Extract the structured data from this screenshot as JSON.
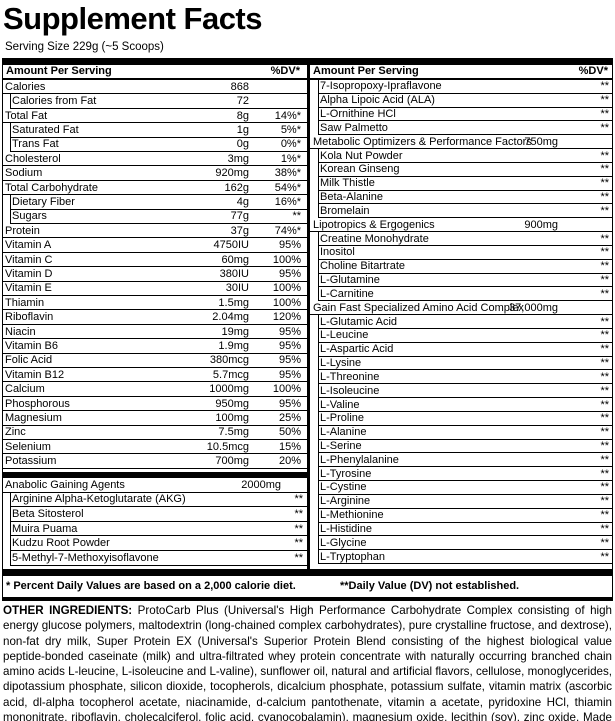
{
  "header": {
    "title": "Supplement Facts",
    "serving_size": "Serving Size 229g (~5 Scoops)"
  },
  "left": {
    "heading": "Amount Per Serving",
    "dv_heading": "%DV*",
    "nutrients": [
      {
        "name": "Calories",
        "amount": "868"
      },
      {
        "name": "Calories from Fat",
        "amount": "72"
      },
      {
        "name": "Total Fat",
        "amount": "8g",
        "dv": "14%*"
      },
      {
        "name": "Saturated Fat",
        "amount": "1g",
        "dv": "5%*"
      },
      {
        "name": "Trans Fat",
        "amount": "0g",
        "dv": "0%*"
      },
      {
        "name": "Cholesterol",
        "amount": "3mg",
        "dv": "1%*"
      },
      {
        "name": "Sodium",
        "amount": "920mg",
        "dv": "38%*"
      },
      {
        "name": "Total Carbohydrate",
        "amount": "162g",
        "dv": "54%*"
      },
      {
        "name": "Dietary Fiber",
        "amount": "4g",
        "dv": "16%*"
      },
      {
        "name": "Sugars",
        "amount": "77g",
        "dv": "**"
      },
      {
        "name": "Protein",
        "amount": "37g",
        "dv": "74%*"
      },
      {
        "name": "Vitamin A",
        "amount": "4750IU",
        "dv": "95%"
      },
      {
        "name": "Vitamin C",
        "amount": "60mg",
        "dv": "100%"
      },
      {
        "name": "Vitamin D",
        "amount": "380IU",
        "dv": "95%"
      },
      {
        "name": "Vitamin E",
        "amount": "30IU",
        "dv": "100%"
      },
      {
        "name": "Thiamin",
        "amount": "1.5mg",
        "dv": "100%"
      },
      {
        "name": "Riboflavin",
        "amount": "2.04mg",
        "dv": "120%"
      },
      {
        "name": "Niacin",
        "amount": "19mg",
        "dv": "95%"
      },
      {
        "name": "Vitamin B6",
        "amount": "1.9mg",
        "dv": "95%"
      },
      {
        "name": "Folic Acid",
        "amount": "380mcg",
        "dv": "95%"
      },
      {
        "name": "Vitamin B12",
        "amount": "5.7mcg",
        "dv": "95%"
      },
      {
        "name": "Calcium",
        "amount": "1000mg",
        "dv": "100%"
      },
      {
        "name": "Phosphorous",
        "amount": "950mg",
        "dv": "95%"
      },
      {
        "name": "Magnesium",
        "amount": "100mg",
        "dv": "25%"
      },
      {
        "name": "Zinc",
        "amount": "7.5mg",
        "dv": "50%"
      },
      {
        "name": "Selenium",
        "amount": "10.5mcg",
        "dv": "15%"
      },
      {
        "name": "Potassium",
        "amount": "700mg",
        "dv": "20%"
      }
    ],
    "blend": {
      "name": "Anabolic Gaining Agents",
      "amount": "2000mg",
      "ingredients": [
        {
          "name": "Arginine Alpha-Ketoglutarate (AKG)",
          "dv": "**"
        },
        {
          "name": "Beta Sitosterol",
          "dv": "**"
        },
        {
          "name": "Muira Puama",
          "dv": "**"
        },
        {
          "name": "Kudzu Root Powder",
          "dv": "**"
        },
        {
          "name": "5-Methyl-7-Methoxyisoflavone",
          "dv": "**"
        }
      ]
    }
  },
  "right": {
    "heading": "Amount Per Serving",
    "dv_heading": "%DV*",
    "rows": [
      {
        "name": "7-Isopropoxy-Ipraflavone",
        "dv": "**"
      },
      {
        "name": "Alpha Lipoic Acid (ALA)",
        "dv": "**"
      },
      {
        "name": "L-Ornithine HCl",
        "dv": "**"
      },
      {
        "name": "Saw Palmetto",
        "dv": "**"
      }
    ],
    "blends": [
      {
        "name": "Metabolic Optimizers & Performance Factors",
        "amount": "750mg",
        "ingredients": [
          {
            "name": "Kola Nut Powder",
            "dv": "**"
          },
          {
            "name": "Korean Ginseng",
            "dv": "**"
          },
          {
            "name": "Milk Thistle",
            "dv": "**"
          },
          {
            "name": "Beta-Alanine",
            "dv": "**"
          },
          {
            "name": "Bromelain",
            "dv": "**"
          }
        ]
      },
      {
        "name": "Lipotropics & Ergogenics",
        "amount": "900mg",
        "ingredients": [
          {
            "name": "Creatine Monohydrate",
            "dv": "**"
          },
          {
            "name": "Inositol",
            "dv": "**"
          },
          {
            "name": "Choline Bitartrate",
            "dv": "**"
          },
          {
            "name": "L-Glutamine",
            "dv": "**"
          },
          {
            "name": "L-Carnitine",
            "dv": "**"
          }
        ]
      },
      {
        "name": "Gain Fast Specialized Amino Acid Complex",
        "amount": "37,000mg",
        "ingredients": [
          {
            "name": "L-Glutamic Acid",
            "dv": "**"
          },
          {
            "name": "L-Leucine",
            "dv": "**"
          },
          {
            "name": "L-Aspartic Acid",
            "dv": "**"
          },
          {
            "name": "L-Lysine",
            "dv": "**"
          },
          {
            "name": "L-Threonine",
            "dv": "**"
          },
          {
            "name": "L-Isoleucine",
            "dv": "**"
          },
          {
            "name": "L-Valine",
            "dv": "**"
          },
          {
            "name": "L-Proline",
            "dv": "**"
          },
          {
            "name": "L-Alanine",
            "dv": "**"
          },
          {
            "name": "L-Serine",
            "dv": "**"
          },
          {
            "name": "L-Phenylalanine",
            "dv": "**"
          },
          {
            "name": "L-Tyrosine",
            "dv": "**"
          },
          {
            "name": "L-Cystine",
            "dv": "**"
          },
          {
            "name": "L-Arginine",
            "dv": "**"
          },
          {
            "name": "L-Methionine",
            "dv": "**"
          },
          {
            "name": "L-Histidine",
            "dv": "**"
          },
          {
            "name": "L-Glycine",
            "dv": "**"
          },
          {
            "name": "L-Tryptophan",
            "dv": "**"
          }
        ]
      }
    ]
  },
  "footer": {
    "percent_note": "* Percent Daily Values are based on a 2,000 calorie diet.",
    "dv_note": "**Daily Value (DV) not established."
  },
  "other_ingredients": {
    "label": "OTHER INGREDIENTS:",
    "text": "ProtoCarb Plus (Universal's High Performance Carbohydrate Complex consisting of high energy glucose polymers, maltodextrin (long-chained complex carbohydrates), pure crystalline fructose, and dextrose), non-fat dry milk, Super Protein EX (Universal's Superior Protein Blend consisting of the highest biological value peptide-bonded caseinate (milk) and ultra-filtrated whey protein concentrate with naturally occurring branched chain amino acids L-leucine, L-isoleucine and L-valine), sunflower oil, natural and artificial flavors, cellulose, monoglycerides, dipotassium phosphate, silicon dioxide, tocopherols, dicalcium phosphate, potassium sulfate, vitamin matrix (ascorbic acid, dl-alpha tocopherol acetate, niacinamide, d-calcium pantothenate, vitamin a acetate, pyridoxine HCl, thiamin mononitrate, riboflavin, cholecalciferol, folic acid, cyanocobalamin), magnesium oxide, lecithin (soy), zinc oxide. Made in a GMP facility that uses milk, soy, egg, peanuts."
  }
}
